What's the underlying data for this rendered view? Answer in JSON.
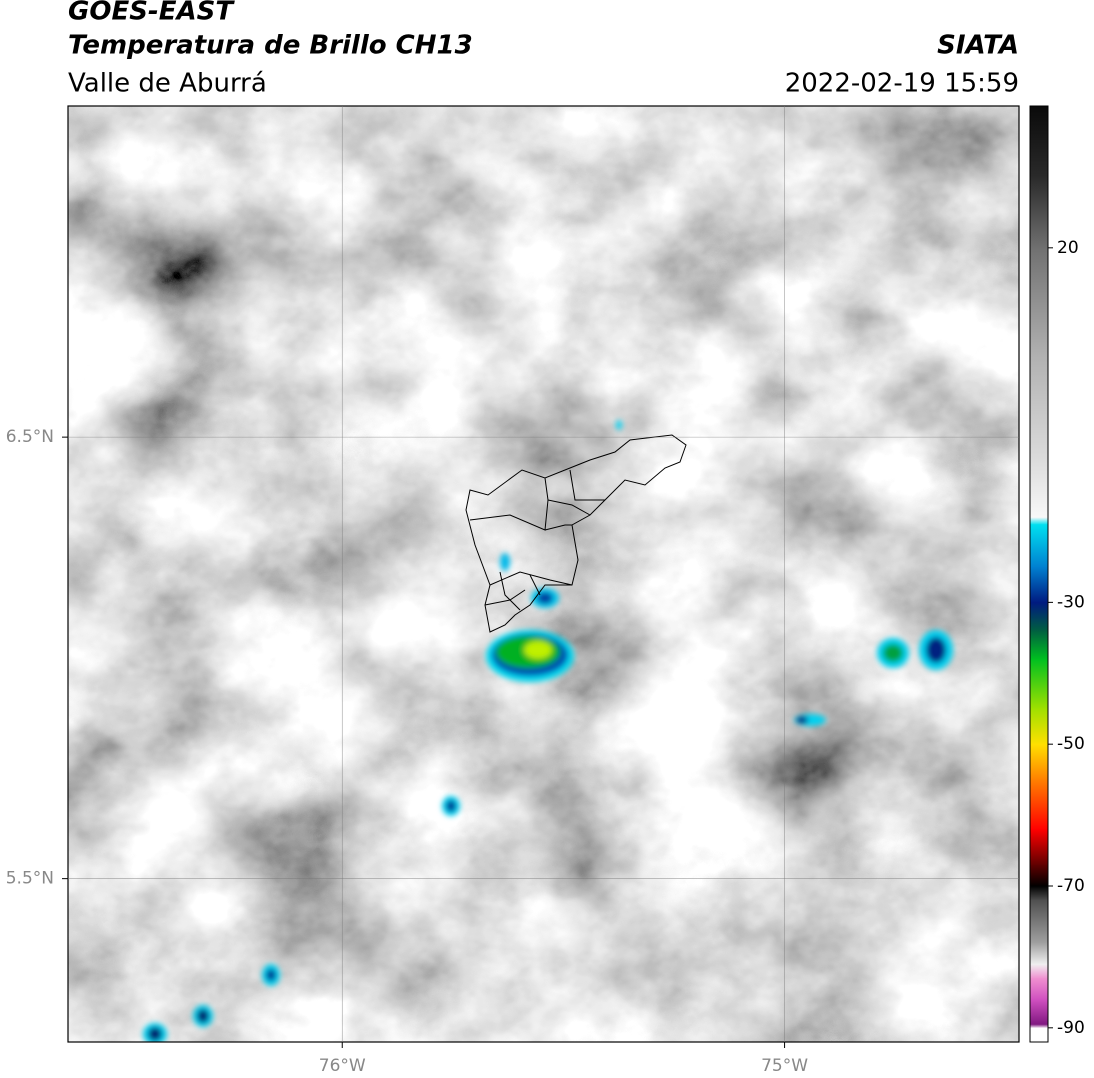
{
  "header": {
    "title": "GOES-EAST",
    "subtitle": "Temperatura de Brillo CH13",
    "region": "Valle de Aburrá",
    "source": "SIATA",
    "datetime": "2022-02-19 15:59"
  },
  "map": {
    "xlim": [
      -76.62,
      -74.47
    ],
    "ylim": [
      5.13,
      7.25
    ],
    "xticks": [
      {
        "value": -76,
        "label": "76°W"
      },
      {
        "value": -75,
        "label": "75°W"
      }
    ],
    "yticks": [
      {
        "value": 6.5,
        "label": "6.5°N"
      },
      {
        "value": 5.5,
        "label": "5.5°N"
      }
    ],
    "grid": true
  },
  "colorbar": {
    "lim": [
      -92,
      40
    ],
    "ticks": [
      20,
      -30,
      -50,
      -70,
      -90
    ],
    "stops": [
      {
        "value": 40,
        "color": "#0a0a0a"
      },
      {
        "value": 30,
        "color": "#2a2a2a"
      },
      {
        "value": 20,
        "color": "#707070"
      },
      {
        "value": 5,
        "color": "#b0b0b0"
      },
      {
        "value": -10,
        "color": "#dcdcdc"
      },
      {
        "value": -18,
        "color": "#f8f8f8"
      },
      {
        "value": -19,
        "color": "#00e0f0"
      },
      {
        "value": -25,
        "color": "#0080d0"
      },
      {
        "value": -30,
        "color": "#001a80"
      },
      {
        "value": -34,
        "color": "#006040"
      },
      {
        "value": -38,
        "color": "#00c020"
      },
      {
        "value": -45,
        "color": "#a0e000"
      },
      {
        "value": -50,
        "color": "#ffe000"
      },
      {
        "value": -55,
        "color": "#ff8000"
      },
      {
        "value": -62,
        "color": "#ff0000"
      },
      {
        "value": -67,
        "color": "#600000"
      },
      {
        "value": -70,
        "color": "#000000"
      },
      {
        "value": -72,
        "color": "#505050"
      },
      {
        "value": -78,
        "color": "#a0a0a0"
      },
      {
        "value": -81,
        "color": "#f0f0f0"
      },
      {
        "value": -83,
        "color": "#f090d0"
      },
      {
        "value": -86,
        "color": "#d050c0"
      },
      {
        "value": -89.5,
        "color": "#801880"
      },
      {
        "value": -90,
        "color": "#ffffff"
      },
      {
        "value": -92,
        "color": "#ffffff"
      }
    ]
  }
}
